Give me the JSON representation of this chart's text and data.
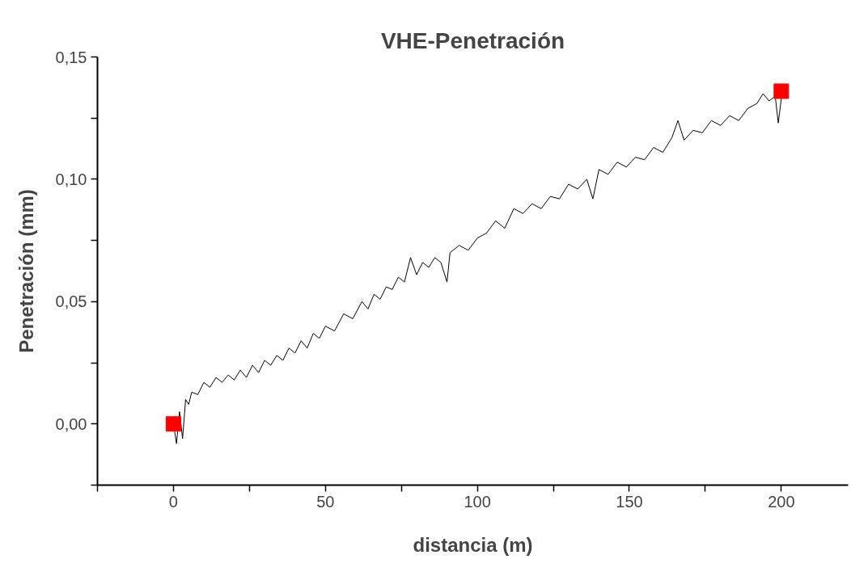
{
  "chart_data": {
    "type": "line",
    "title": "VHE-Penetración",
    "xlabel": "distancia (m)",
    "ylabel": "Penetración (mm)",
    "xlim": [
      -25,
      222
    ],
    "ylim": [
      -0.025,
      0.15
    ],
    "xticks": [
      {
        "value": -25,
        "label": null
      },
      0,
      {
        "value": 25,
        "label": null
      },
      50,
      {
        "value": 75,
        "label": null
      },
      100,
      {
        "value": 125,
        "label": null
      },
      150,
      {
        "value": 175,
        "label": null
      },
      200
    ],
    "yticks": [
      {
        "value": -0.025,
        "label": null
      },
      {
        "value": 0,
        "label": "0,00"
      },
      {
        "value": 0.025,
        "label": null
      },
      {
        "value": 0.05,
        "label": "0,05"
      },
      {
        "value": 0.075,
        "label": null
      },
      {
        "value": 0.1,
        "label": "0,10"
      },
      {
        "value": 0.125,
        "label": null
      },
      {
        "value": 0.15,
        "label": "0,15"
      }
    ],
    "grid": false,
    "series": [
      {
        "color": "#000000",
        "x": [
          0,
          1,
          2,
          3,
          4,
          5,
          6,
          8,
          10,
          12,
          14,
          16,
          18,
          20,
          22,
          24,
          26,
          28,
          30,
          32,
          34,
          36,
          38,
          40,
          42,
          44,
          46,
          48,
          50,
          53,
          56,
          59,
          62,
          64,
          66,
          68,
          70,
          72,
          74,
          76,
          78,
          80,
          82,
          84,
          86,
          88,
          90,
          91,
          94,
          97,
          100,
          103,
          106,
          109,
          112,
          115,
          118,
          121,
          124,
          127,
          130,
          133,
          136,
          138,
          140,
          143,
          146,
          149,
          152,
          155,
          158,
          161,
          164,
          166,
          168,
          171,
          174,
          177,
          180,
          183,
          186,
          189,
          192,
          194,
          196,
          198,
          199,
          200
        ],
        "values": [
          0.0,
          -0.008,
          0.005,
          -0.006,
          0.01,
          0.008,
          0.013,
          0.012,
          0.017,
          0.015,
          0.019,
          0.017,
          0.02,
          0.018,
          0.022,
          0.019,
          0.024,
          0.021,
          0.026,
          0.024,
          0.028,
          0.026,
          0.031,
          0.029,
          0.034,
          0.031,
          0.037,
          0.035,
          0.04,
          0.038,
          0.045,
          0.043,
          0.05,
          0.047,
          0.053,
          0.051,
          0.056,
          0.055,
          0.06,
          0.058,
          0.068,
          0.061,
          0.066,
          0.064,
          0.068,
          0.066,
          0.058,
          0.07,
          0.073,
          0.071,
          0.076,
          0.078,
          0.083,
          0.08,
          0.088,
          0.086,
          0.09,
          0.088,
          0.093,
          0.092,
          0.098,
          0.096,
          0.1,
          0.092,
          0.104,
          0.102,
          0.107,
          0.105,
          0.109,
          0.108,
          0.113,
          0.111,
          0.117,
          0.124,
          0.116,
          0.12,
          0.119,
          0.124,
          0.122,
          0.126,
          0.124,
          0.129,
          0.131,
          0.135,
          0.132,
          0.134,
          0.123,
          0.133
        ]
      },
      {
        "type": "scatter",
        "color": "#ff0000",
        "marker": "square",
        "x": [
          0,
          200
        ],
        "values": [
          0,
          0.136
        ]
      }
    ]
  }
}
